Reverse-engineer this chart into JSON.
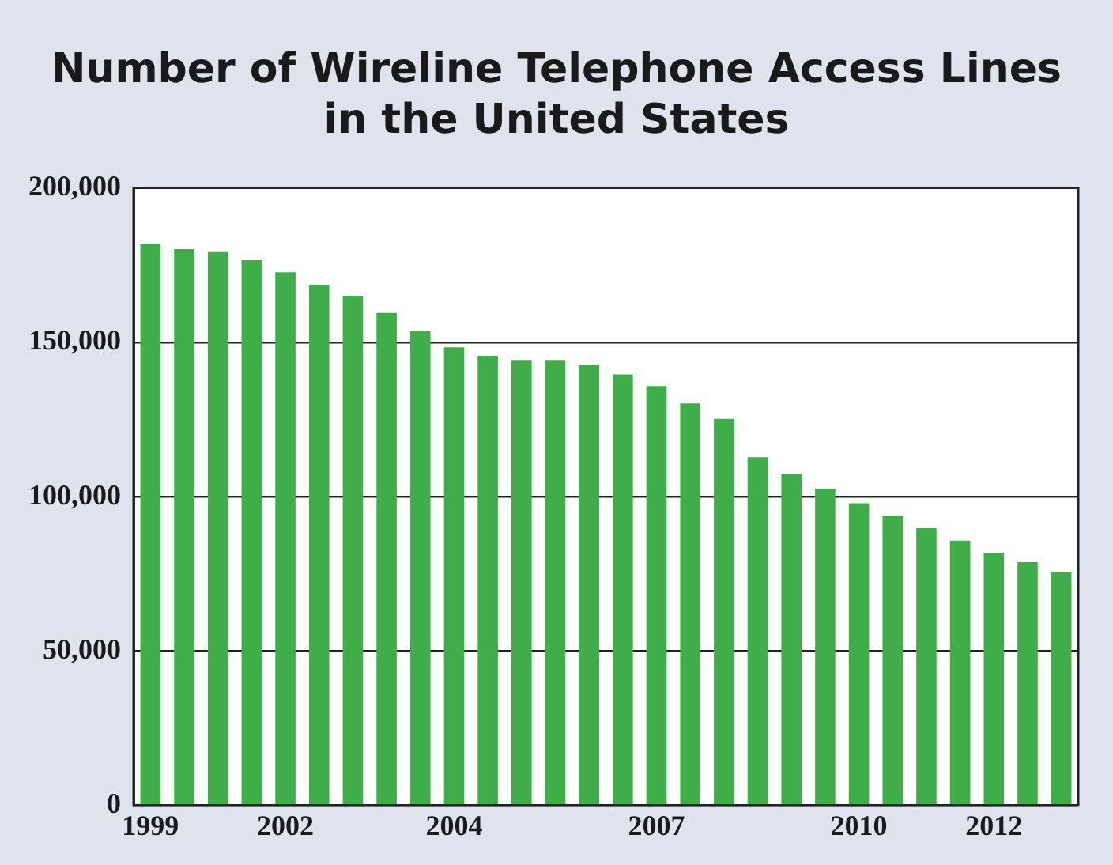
{
  "chart_data": {
    "type": "bar",
    "title": "Number of Wireline Telephone Access Lines in the United States",
    "categories": [
      "1999",
      null,
      null,
      null,
      "2002",
      null,
      null,
      null,
      null,
      "2004",
      null,
      null,
      null,
      null,
      null,
      "2007",
      null,
      null,
      null,
      null,
      null,
      "2010",
      null,
      null,
      null,
      "2012",
      null,
      null
    ],
    "values": [
      181900,
      180200,
      179200,
      176600,
      172700,
      168600,
      165100,
      159500,
      153600,
      148400,
      145600,
      144300,
      144300,
      142700,
      139600,
      135800,
      130200,
      125200,
      112800,
      107500,
      102600,
      97900,
      93900,
      89800,
      85800,
      81600,
      78800,
      75700
    ],
    "color": "#3fae49",
    "ylim": [
      0,
      200000
    ],
    "yticks": [
      0,
      {
        "value": 50000,
        "label": "50,000"
      },
      {
        "value": 100000,
        "label": "100,000"
      },
      {
        "value": 150000,
        "label": "150,000"
      },
      {
        "value": 200000,
        "label": "200,000"
      }
    ],
    "grid": "y"
  }
}
